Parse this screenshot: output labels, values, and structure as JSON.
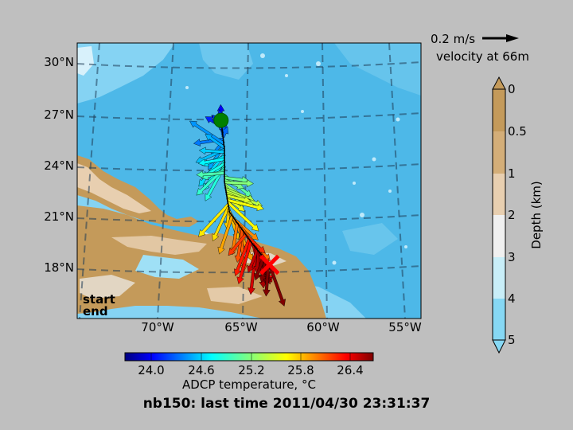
{
  "title": "nb150: last time 2011/04/30 23:31:37",
  "map": {
    "lat_labels": [
      "30°N",
      "27°N",
      "24°N",
      "21°N",
      "18°N"
    ],
    "lon_labels": [
      "70°W",
      "65°W",
      "60°W",
      "55°W"
    ],
    "legend": {
      "start": "start",
      "end": "end",
      "start_color": "#008000",
      "end_color": "#ff0000"
    },
    "ocean_color": "#4db8e8",
    "land_color": "#c49a5a",
    "track": {
      "start": {
        "lon": -66.2,
        "lat": 26.9
      },
      "end": {
        "lon": -63.3,
        "lat": 18.4
      },
      "points": [
        {
          "lon": -66.2,
          "lat": 26.9
        },
        {
          "lon": -66.0,
          "lat": 25.2
        },
        {
          "lon": -66.0,
          "lat": 23.3
        },
        {
          "lon": -65.7,
          "lat": 21.5
        },
        {
          "lon": -64.3,
          "lat": 19.6
        },
        {
          "lon": -63.3,
          "lat": 18.4
        }
      ]
    }
  },
  "velocity_key": {
    "speed": "0.2 m/s",
    "depth_label": "velocity at 66m"
  },
  "depth_colorbar": {
    "label": "Depth (km)",
    "ticks": [
      "0",
      "0.5",
      "1",
      "2",
      "3",
      "4",
      "5"
    ],
    "colors": [
      "#c49a5a",
      "#d4ae78",
      "#e8cfb0",
      "#f0f0f0",
      "#c8eef8",
      "#86d8f4"
    ]
  },
  "temp_colorbar": {
    "label": "ADCP temperature, °C",
    "ticks": [
      "24.0",
      "24.6",
      "25.2",
      "25.8",
      "26.4"
    ],
    "range": [
      23.7,
      26.7
    ]
  }
}
